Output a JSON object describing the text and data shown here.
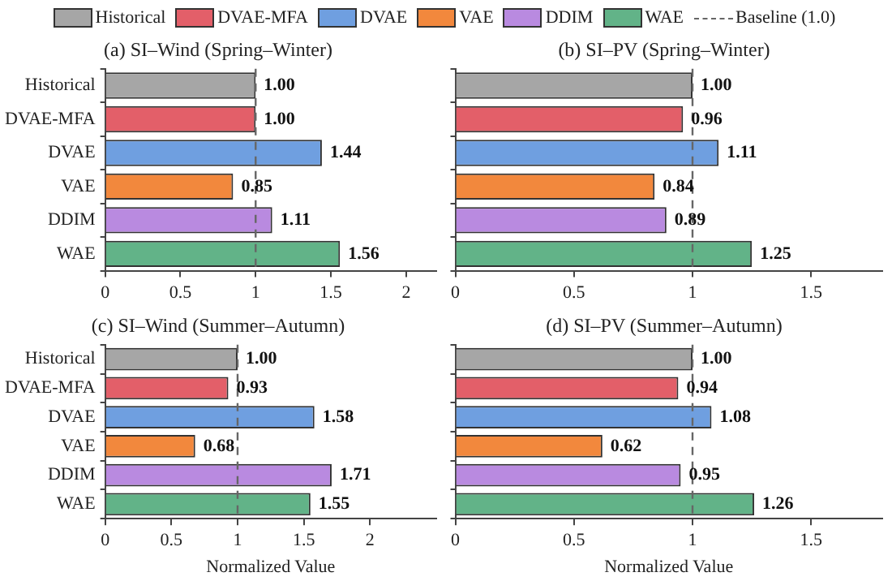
{
  "chart_data": [
    {
      "type": "bar",
      "orientation": "horizontal",
      "title": "(a) SI–Wind (Spring–Winter)",
      "legend": "top",
      "categories": [
        "Historical",
        "DVAE-MFA",
        "DVAE",
        "VAE",
        "DDIM",
        "WAE"
      ],
      "values": [
        1.0,
        1.0,
        1.44,
        0.85,
        1.11,
        1.56
      ],
      "value_labels": [
        "1.00",
        "1.00",
        "1.44",
        "0.85",
        "1.11",
        "1.56"
      ],
      "colors": [
        "#a6a6a6",
        "#e35f69",
        "#6f9fe0",
        "#f2883d",
        "#b98ae0",
        "#62b388"
      ],
      "xlim": [
        0,
        2.2
      ],
      "xticks": [
        0,
        0.5,
        1,
        1.5,
        2
      ],
      "ref_lines": [
        {
          "axis": "x",
          "value": 1,
          "label": "Baseline (1.0)",
          "color": "#666666",
          "line_style": "dashed"
        }
      ]
    },
    {
      "type": "bar",
      "orientation": "horizontal",
      "title": "(b) SI–PV (Spring–Winter)",
      "categories": [
        null,
        null,
        null,
        null,
        null,
        null
      ],
      "values": [
        1.0,
        0.96,
        1.11,
        0.84,
        0.89,
        1.25
      ],
      "value_labels": [
        "1.00",
        "0.96",
        "1.11",
        "0.84",
        "0.89",
        "1.25"
      ],
      "colors": [
        "#a6a6a6",
        "#e35f69",
        "#6f9fe0",
        "#f2883d",
        "#b98ae0",
        "#62b388"
      ],
      "xlim": [
        0,
        1.8
      ],
      "xticks": [
        0,
        0.5,
        1,
        1.5
      ],
      "tick_labels": "x",
      "ref_lines": [
        {
          "axis": "x",
          "value": 1,
          "color": "#666666",
          "line_style": "dashed"
        }
      ]
    },
    {
      "type": "bar",
      "orientation": "horizontal",
      "title": "(c) SI–Wind (Summer–Autumn)",
      "xlabel": "Normalized Value",
      "categories": [
        "Historical",
        "DVAE-MFA",
        "DVAE",
        "VAE",
        "DDIM",
        "WAE"
      ],
      "values": [
        1.0,
        0.93,
        1.58,
        0.68,
        1.71,
        1.55
      ],
      "value_labels": [
        "1.00",
        "0.93",
        "1.58",
        "0.68",
        "1.71",
        "1.55"
      ],
      "colors": [
        "#a6a6a6",
        "#e35f69",
        "#6f9fe0",
        "#f2883d",
        "#b98ae0",
        "#62b388"
      ],
      "xlim": [
        0,
        2.5
      ],
      "xticks": [
        0,
        0.5,
        1,
        1.5,
        2
      ],
      "ref_lines": [
        {
          "axis": "x",
          "value": 1,
          "color": "#666666",
          "line_style": "dashed"
        }
      ]
    },
    {
      "type": "bar",
      "orientation": "horizontal",
      "title": "(d) SI–PV (Summer–Autumn)",
      "xlabel": "Normalized Value",
      "categories": [
        null,
        null,
        null,
        null,
        null,
        null
      ],
      "values": [
        1.0,
        0.94,
        1.08,
        0.62,
        0.95,
        1.26
      ],
      "value_labels": [
        "1.00",
        "0.94",
        "1.08",
        "0.62",
        "0.95",
        "1.26"
      ],
      "colors": [
        "#a6a6a6",
        "#e35f69",
        "#6f9fe0",
        "#f2883d",
        "#b98ae0",
        "#62b388"
      ],
      "xlim": [
        0,
        1.8
      ],
      "xticks": [
        0,
        0.5,
        1,
        1.5
      ],
      "tick_labels": "x",
      "ref_lines": [
        {
          "axis": "x",
          "value": 1,
          "color": "#666666",
          "line_style": "dashed"
        }
      ]
    }
  ]
}
